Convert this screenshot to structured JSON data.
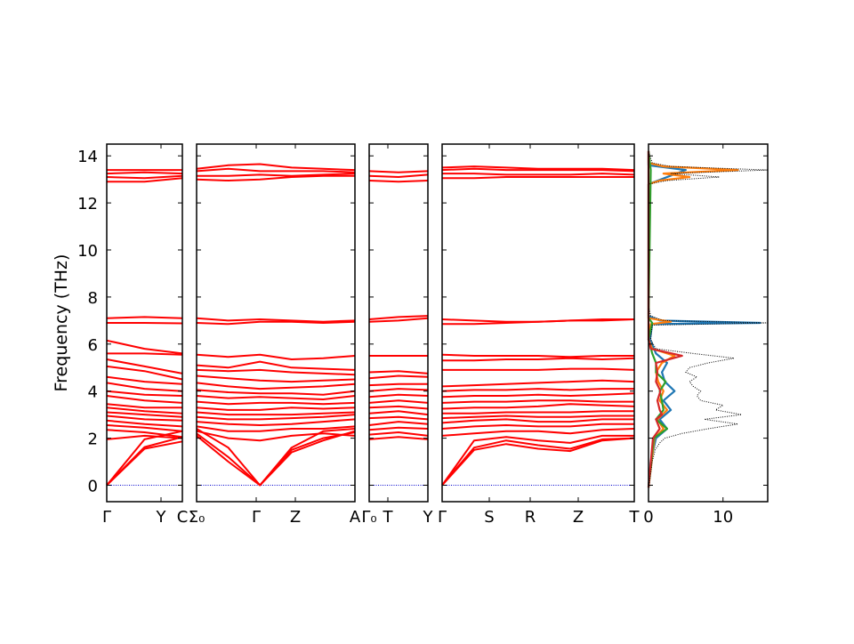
{
  "chart_data": {
    "type": "line",
    "ylabel": "Frequency (THz)",
    "ylim": [
      -0.7,
      14.5
    ],
    "y_ticks": [
      0,
      2,
      4,
      6,
      8,
      10,
      12,
      14
    ],
    "colors": {
      "band": "#ff0000",
      "zero_line": "#0000cc",
      "dos_total": "#000000",
      "dos_series": [
        "#1f77b4",
        "#ff7f0e",
        "#2ca02c",
        "#d62728"
      ]
    },
    "panels": [
      {
        "id": "gamma-y",
        "x_ticks": [
          "Γ",
          "Y",
          "C"
        ],
        "bands": [
          [
            0.0,
            1.55,
            1.86
          ],
          [
            0.0,
            1.62,
            2.05
          ],
          [
            0.0,
            1.95,
            2.3
          ],
          [
            1.95,
            2.1,
            2.0
          ],
          [
            2.35,
            2.25,
            2.05
          ],
          [
            2.55,
            2.45,
            2.3
          ],
          [
            2.75,
            2.6,
            2.5
          ],
          [
            2.95,
            2.8,
            2.75
          ],
          [
            3.1,
            3.0,
            2.9
          ],
          [
            3.3,
            3.15,
            3.05
          ],
          [
            3.45,
            3.3,
            3.3
          ],
          [
            3.8,
            3.6,
            3.5
          ],
          [
            4.0,
            3.85,
            3.8
          ],
          [
            4.35,
            4.1,
            4.0
          ],
          [
            4.6,
            4.4,
            4.3
          ],
          [
            5.05,
            4.85,
            4.5
          ],
          [
            5.35,
            5.05,
            4.75
          ],
          [
            5.6,
            5.6,
            5.55
          ],
          [
            6.15,
            5.8,
            5.6
          ],
          [
            6.9,
            6.9,
            6.88
          ],
          [
            7.1,
            7.15,
            7.1
          ],
          [
            12.9,
            12.9,
            13.05
          ],
          [
            13.1,
            13.05,
            13.15
          ],
          [
            13.25,
            13.3,
            13.25
          ],
          [
            13.4,
            13.4,
            13.4
          ]
        ]
      },
      {
        "id": "sigma-gamma-z-a",
        "x_ticks": [
          "Σ₀",
          "Γ",
          "Z",
          "A"
        ],
        "bands": [
          [
            2.1,
            1.0,
            0.0,
            1.4,
            1.9,
            2.3
          ],
          [
            2.2,
            1.2,
            0.0,
            1.5,
            2.0,
            2.25
          ],
          [
            2.4,
            1.6,
            0.0,
            1.6,
            2.3,
            2.4
          ],
          [
            2.3,
            2.0,
            1.9,
            2.1,
            2.2,
            2.1
          ],
          [
            2.5,
            2.3,
            2.3,
            2.4,
            2.4,
            2.5
          ],
          [
            2.7,
            2.6,
            2.55,
            2.6,
            2.7,
            2.8
          ],
          [
            2.9,
            2.8,
            2.8,
            2.85,
            2.9,
            3.0
          ],
          [
            3.1,
            3.0,
            3.0,
            3.0,
            3.05,
            3.1
          ],
          [
            3.3,
            3.2,
            3.2,
            3.3,
            3.25,
            3.3
          ],
          [
            3.55,
            3.45,
            3.5,
            3.5,
            3.45,
            3.5
          ],
          [
            3.8,
            3.7,
            3.75,
            3.7,
            3.65,
            3.8
          ],
          [
            4.05,
            3.95,
            3.9,
            3.9,
            3.85,
            4.0
          ],
          [
            4.35,
            4.2,
            4.1,
            4.15,
            4.2,
            4.3
          ],
          [
            4.65,
            4.55,
            4.45,
            4.4,
            4.45,
            4.5
          ],
          [
            4.9,
            4.85,
            4.9,
            4.8,
            4.75,
            4.7
          ],
          [
            5.1,
            5.0,
            5.25,
            5.0,
            4.95,
            4.9
          ],
          [
            5.55,
            5.45,
            5.55,
            5.35,
            5.4,
            5.5
          ],
          [
            6.9,
            6.85,
            6.95,
            6.95,
            6.9,
            6.95
          ],
          [
            7.1,
            7.0,
            7.05,
            7.0,
            6.95,
            7.0
          ],
          [
            13.0,
            12.95,
            13.0,
            13.1,
            13.15,
            13.15
          ],
          [
            13.15,
            13.15,
            13.2,
            13.15,
            13.2,
            13.25
          ],
          [
            13.35,
            13.45,
            13.35,
            13.35,
            13.35,
            13.3
          ],
          [
            13.45,
            13.6,
            13.65,
            13.5,
            13.45,
            13.4
          ]
        ]
      },
      {
        "id": "gamma-t-y",
        "x_ticks": [
          "Γ₀",
          "T",
          "Y"
        ],
        "bands": [
          [
            1.95,
            2.05,
            1.95
          ],
          [
            2.15,
            2.25,
            2.1
          ],
          [
            2.35,
            2.45,
            2.4
          ],
          [
            2.55,
            2.7,
            2.6
          ],
          [
            2.85,
            2.9,
            2.8
          ],
          [
            3.05,
            3.15,
            3.0
          ],
          [
            3.3,
            3.35,
            3.25
          ],
          [
            3.5,
            3.6,
            3.5
          ],
          [
            3.75,
            3.85,
            3.8
          ],
          [
            4.0,
            4.1,
            4.05
          ],
          [
            4.25,
            4.3,
            4.3
          ],
          [
            4.55,
            4.65,
            4.6
          ],
          [
            4.8,
            4.85,
            4.75
          ],
          [
            5.5,
            5.5,
            5.5
          ],
          [
            6.95,
            7.0,
            7.1
          ],
          [
            7.05,
            7.15,
            7.2
          ],
          [
            12.95,
            12.9,
            12.95
          ],
          [
            13.15,
            13.1,
            13.2
          ],
          [
            13.35,
            13.3,
            13.35
          ]
        ]
      },
      {
        "id": "gamma-s-r-z-t",
        "x_ticks": [
          "Γ",
          "S",
          "R",
          "Z",
          "T"
        ],
        "bands": [
          [
            0.0,
            1.5,
            1.75,
            1.55,
            1.45,
            1.9,
            2.0
          ],
          [
            0.0,
            1.6,
            1.9,
            1.7,
            1.55,
            1.95,
            2.0
          ],
          [
            0.0,
            1.9,
            2.05,
            1.9,
            1.8,
            2.1,
            2.1
          ],
          [
            2.1,
            2.2,
            2.3,
            2.3,
            2.2,
            2.35,
            2.4
          ],
          [
            2.4,
            2.5,
            2.55,
            2.5,
            2.5,
            2.6,
            2.6
          ],
          [
            2.65,
            2.75,
            2.8,
            2.7,
            2.7,
            2.8,
            2.8
          ],
          [
            2.85,
            2.9,
            2.95,
            2.9,
            2.9,
            2.95,
            2.95
          ],
          [
            3.05,
            3.05,
            3.1,
            3.1,
            3.1,
            3.15,
            3.15
          ],
          [
            3.25,
            3.3,
            3.3,
            3.35,
            3.45,
            3.4,
            3.35
          ],
          [
            3.5,
            3.55,
            3.55,
            3.6,
            3.6,
            3.55,
            3.55
          ],
          [
            3.75,
            3.8,
            3.8,
            3.85,
            3.8,
            3.85,
            3.9
          ],
          [
            4.0,
            4.05,
            4.05,
            4.1,
            4.05,
            4.1,
            4.1
          ],
          [
            4.2,
            4.25,
            4.3,
            4.35,
            4.4,
            4.45,
            4.4
          ],
          [
            4.9,
            4.9,
            4.9,
            4.9,
            4.95,
            4.95,
            4.9
          ],
          [
            5.3,
            5.3,
            5.35,
            5.35,
            5.4,
            5.35,
            5.4
          ],
          [
            5.55,
            5.5,
            5.5,
            5.5,
            5.45,
            5.5,
            5.5
          ],
          [
            6.85,
            6.85,
            6.9,
            6.95,
            7.0,
            7.0,
            7.05
          ],
          [
            7.05,
            7.0,
            6.95,
            6.95,
            7.0,
            7.05,
            7.05
          ],
          [
            13.05,
            13.05,
            13.1,
            13.1,
            13.1,
            13.1,
            13.1
          ],
          [
            13.25,
            13.25,
            13.2,
            13.2,
            13.2,
            13.25,
            13.2
          ],
          [
            13.4,
            13.45,
            13.4,
            13.4,
            13.4,
            13.4,
            13.35
          ],
          [
            13.5,
            13.55,
            13.5,
            13.45,
            13.45,
            13.45,
            13.4
          ]
        ]
      }
    ],
    "dos": {
      "x_ticks": [
        "0",
        "10"
      ],
      "xlim": [
        0,
        16
      ],
      "total": [
        [
          -0.1,
          0
        ],
        [
          0.5,
          0.3
        ],
        [
          1.0,
          0.5
        ],
        [
          1.5,
          0.9
        ],
        [
          1.8,
          1.5
        ],
        [
          2.0,
          2.2
        ],
        [
          2.2,
          4.5
        ],
        [
          2.4,
          8.0
        ],
        [
          2.6,
          12.0
        ],
        [
          2.8,
          7.5
        ],
        [
          3.0,
          12.5
        ],
        [
          3.2,
          9.0
        ],
        [
          3.4,
          10.0
        ],
        [
          3.6,
          7.0
        ],
        [
          3.8,
          6.5
        ],
        [
          4.0,
          7.0
        ],
        [
          4.2,
          6.0
        ],
        [
          4.4,
          5.5
        ],
        [
          4.6,
          6.5
        ],
        [
          4.8,
          5.0
        ],
        [
          5.0,
          5.5
        ],
        [
          5.2,
          8.0
        ],
        [
          5.4,
          11.5
        ],
        [
          5.6,
          6.0
        ],
        [
          5.8,
          1.0
        ],
        [
          6.2,
          0.3
        ],
        [
          6.8,
          0.5
        ],
        [
          6.9,
          16.0
        ],
        [
          7.0,
          2.0
        ],
        [
          7.2,
          0.3
        ],
        [
          7.6,
          0
        ],
        [
          12.8,
          0
        ],
        [
          12.95,
          2.5
        ],
        [
          13.1,
          9.5
        ],
        [
          13.25,
          3.0
        ],
        [
          13.4,
          16.0
        ],
        [
          13.55,
          3.0
        ],
        [
          13.7,
          0.5
        ],
        [
          14.2,
          0
        ]
      ],
      "series": [
        {
          "color": "#1f77b4",
          "points": [
            [
              -0.1,
              0
            ],
            [
              1.0,
              0.3
            ],
            [
              2.0,
              1.0
            ],
            [
              2.4,
              2.5
            ],
            [
              2.8,
              1.5
            ],
            [
              3.2,
              3.0
            ],
            [
              3.6,
              2.0
            ],
            [
              4.0,
              3.5
            ],
            [
              4.4,
              2.2
            ],
            [
              4.8,
              1.8
            ],
            [
              5.2,
              2.5
            ],
            [
              5.6,
              1.0
            ],
            [
              6.2,
              0.2
            ],
            [
              6.85,
              0.5
            ],
            [
              6.9,
              15.0
            ],
            [
              7.0,
              1.5
            ],
            [
              7.2,
              0
            ],
            [
              12.8,
              0
            ],
            [
              13.4,
              5.0
            ],
            [
              13.6,
              0
            ],
            [
              14.2,
              0
            ]
          ]
        },
        {
          "color": "#ff7f0e",
          "points": [
            [
              -0.1,
              0
            ],
            [
              2.0,
              0.8
            ],
            [
              2.4,
              2.0
            ],
            [
              2.8,
              1.2
            ],
            [
              3.2,
              2.5
            ],
            [
              3.6,
              1.5
            ],
            [
              4.0,
              2.0
            ],
            [
              4.4,
              1.3
            ],
            [
              4.8,
              1.0
            ],
            [
              5.2,
              1.8
            ],
            [
              5.5,
              3.5
            ],
            [
              5.8,
              0.5
            ],
            [
              6.2,
              0
            ],
            [
              6.85,
              0.3
            ],
            [
              6.95,
              3.0
            ],
            [
              7.1,
              0
            ],
            [
              12.8,
              0
            ],
            [
              12.95,
              1.5
            ],
            [
              13.1,
              5.5
            ],
            [
              13.25,
              2.0
            ],
            [
              13.4,
              12.0
            ],
            [
              13.55,
              2.0
            ],
            [
              13.7,
              0
            ],
            [
              14.2,
              0
            ]
          ]
        },
        {
          "color": "#2ca02c",
          "points": [
            [
              -0.1,
              0
            ],
            [
              2.0,
              0.7
            ],
            [
              2.4,
              2.5
            ],
            [
              2.8,
              1.0
            ],
            [
              3.2,
              2.0
            ],
            [
              3.6,
              1.8
            ],
            [
              4.0,
              1.5
            ],
            [
              4.4,
              2.3
            ],
            [
              4.8,
              1.0
            ],
            [
              5.2,
              1.0
            ],
            [
              5.6,
              0.5
            ],
            [
              6.2,
              0
            ],
            [
              6.9,
              0.5
            ],
            [
              7.1,
              0
            ],
            [
              13.4,
              0.3
            ],
            [
              14.2,
              0
            ]
          ]
        },
        {
          "color": "#d62728",
          "points": [
            [
              -0.1,
              0
            ],
            [
              2.0,
              0.6
            ],
            [
              2.4,
              1.5
            ],
            [
              2.8,
              1.0
            ],
            [
              3.0,
              1.8
            ],
            [
              3.2,
              1.5
            ],
            [
              3.6,
              1.2
            ],
            [
              4.0,
              1.6
            ],
            [
              4.4,
              1.0
            ],
            [
              4.8,
              1.2
            ],
            [
              5.2,
              1.0
            ],
            [
              5.5,
              4.5
            ],
            [
              5.8,
              0.3
            ],
            [
              6.2,
              0
            ],
            [
              14.2,
              0
            ]
          ]
        }
      ]
    }
  }
}
